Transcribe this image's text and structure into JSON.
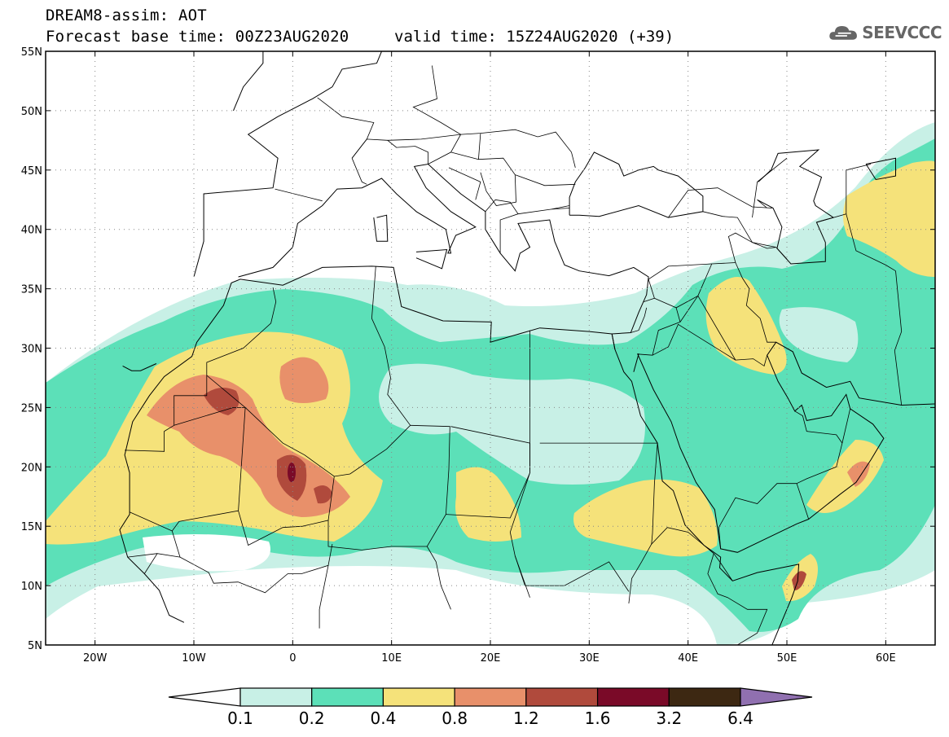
{
  "header": {
    "title_line1": "DREAM8-assim: AOT",
    "title_line2": "Forecast base time: 00Z23AUG2020",
    "valid_time": "valid time: 15Z24AUG2020 (+39)",
    "logo_text": "SEEVCCC",
    "logo_icon": "cloud-icon"
  },
  "map": {
    "lon_range": [
      -25,
      65
    ],
    "lat_range": [
      5,
      55
    ],
    "lat_ticks": [
      "5N",
      "10N",
      "15N",
      "20N",
      "25N",
      "30N",
      "35N",
      "40N",
      "45N",
      "50N",
      "55N"
    ],
    "lat_values": [
      5,
      10,
      15,
      20,
      25,
      30,
      35,
      40,
      45,
      50,
      55
    ],
    "lon_ticks": [
      "20W",
      "10W",
      "0",
      "10E",
      "20E",
      "30E",
      "40E",
      "50E",
      "60E"
    ],
    "lon_values": [
      -20,
      -10,
      0,
      10,
      20,
      30,
      40,
      50,
      60
    ],
    "grid": "dotted"
  },
  "colorbar": {
    "labels": [
      "0.1",
      "0.2",
      "0.4",
      "0.8",
      "1.2",
      "1.6",
      "3.2",
      "6.4"
    ],
    "colors": [
      "#ffffff",
      "#c8f0e6",
      "#5ce0b8",
      "#f5e27a",
      "#e8906a",
      "#b04a3c",
      "#7a0a28",
      "#3d2812",
      "#9070b0"
    ]
  }
}
